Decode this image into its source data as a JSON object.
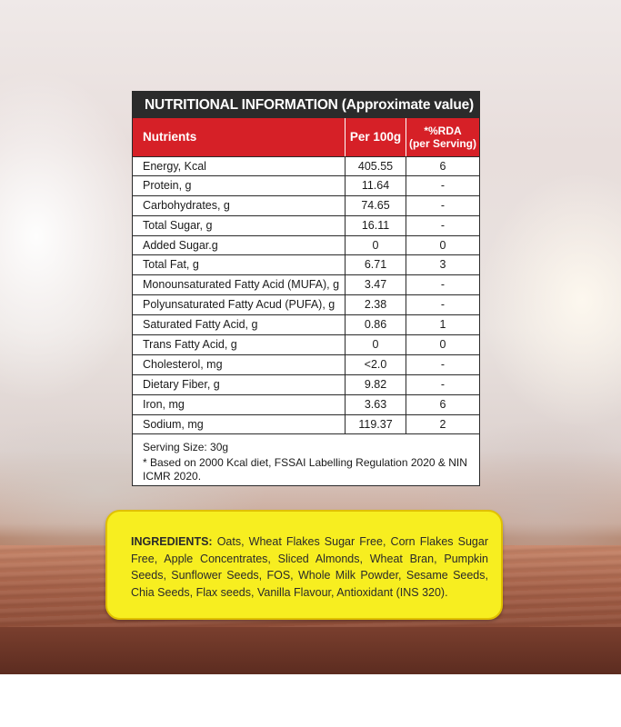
{
  "panel": {
    "title": "NUTRITIONAL INFORMATION (Approximate value)",
    "header": {
      "nutrients": "Nutrients",
      "per100g": "Per 100g",
      "rda_line1": "*%RDA",
      "rda_line2": "(per Serving)"
    },
    "rows": [
      {
        "name": "Energy, Kcal",
        "per100g": "405.55",
        "rda": "6"
      },
      {
        "name": "Protein, g",
        "per100g": "11.64",
        "rda": "-"
      },
      {
        "name": "Carbohydrates, g",
        "per100g": "74.65",
        "rda": "-"
      },
      {
        "name": "Total Sugar, g",
        "per100g": "16.11",
        "rda": "-"
      },
      {
        "name": "Added Sugar.g",
        "per100g": "0",
        "rda": "0"
      },
      {
        "name": "Total Fat, g",
        "per100g": "6.71",
        "rda": "3"
      },
      {
        "name": "Monounsaturated Fatty Acid (MUFA), g",
        "per100g": "3.47",
        "rda": "-"
      },
      {
        "name": "Polyunsaturated Fatty Acud (PUFA), g",
        "per100g": "2.38",
        "rda": "-"
      },
      {
        "name": "Saturated Fatty Acid, g",
        "per100g": "0.86",
        "rda": "1"
      },
      {
        "name": "Trans Fatty Acid, g",
        "per100g": "0",
        "rda": "0"
      },
      {
        "name": "Cholesterol, mg",
        "per100g": "<2.0",
        "rda": "-"
      },
      {
        "name": "Dietary Fiber, g",
        "per100g": "9.82",
        "rda": "-"
      },
      {
        "name": "Iron, mg",
        "per100g": "3.63",
        "rda": "6"
      },
      {
        "name": "Sodium, mg",
        "per100g": "119.37",
        "rda": "2"
      }
    ],
    "serving_size": "Serving Size: 30g",
    "footnote": "* Based on 2000 Kcal diet, FSSAI Labelling Regulation 2020 & NIN ICMR 2020."
  },
  "ingredients": {
    "label": "INGREDIENTS:",
    "text": "Oats, Wheat Flakes Sugar Free, Corn Flakes Sugar Free, Apple Concentrates, Sliced Almonds, Wheat Bran, Pumpkin Seeds, Sunflower Seeds, FOS, Whole Milk Powder, Sesame Seeds, Chia Seeds, Flax seeds, Vanilla Flavour, Antioxidant (INS 320)."
  }
}
